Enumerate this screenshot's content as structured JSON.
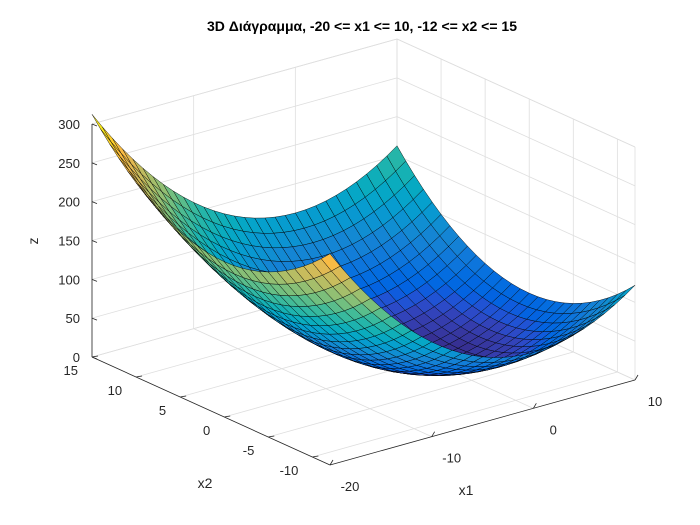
{
  "chart_data": {
    "type": "surface",
    "title": "3D Διάγραμμα, -20 <= x1 <= 10, -12 <= x2 <= 15",
    "xlabel": "x1",
    "ylabel": "x2",
    "zlabel": "z",
    "xlim": [
      -20,
      10
    ],
    "ylim": [
      -12,
      15
    ],
    "zlim": [
      0,
      300
    ],
    "x_ticks": [
      -20,
      -10,
      0,
      10
    ],
    "y_ticks": [
      -10,
      -5,
      0,
      5,
      10,
      15
    ],
    "z_ticks": [
      0,
      50,
      100,
      150,
      200,
      250,
      300
    ],
    "grid": true,
    "colormap": "parula",
    "function": "z = 0.5*x1^2 + 0.5*x2^2",
    "mesh_x1": {
      "start": -20,
      "end": 10,
      "step": 1
    },
    "mesh_x2": {
      "start": -12,
      "end": 15,
      "step": 1
    },
    "view": {
      "azimuth_deg": -37.5,
      "elevation_deg": 30
    }
  }
}
